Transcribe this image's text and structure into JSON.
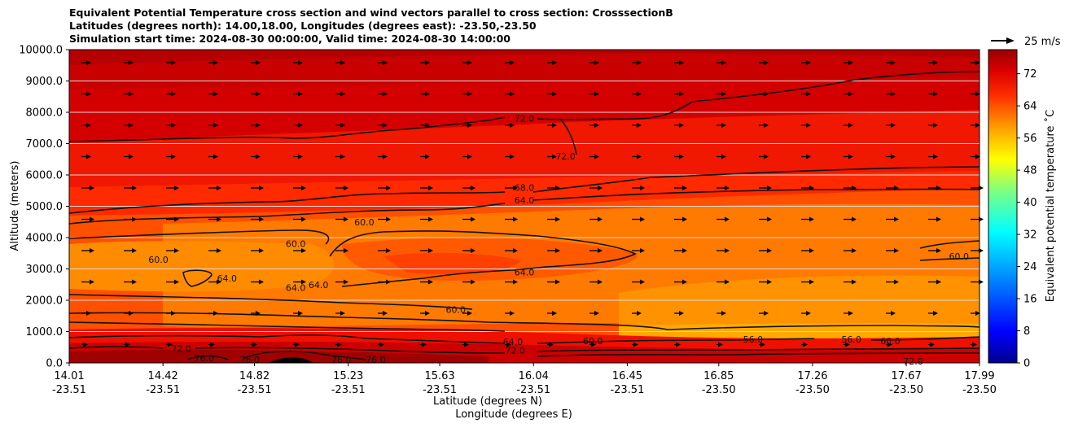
{
  "title": {
    "line1": "Equivalent Potential Temperature cross section and wind vectors parallel to cross section: CrosssectionB",
    "line2": "Latitudes (degrees north): 14.00,18.00, Longitudes (degrees east): -23.50,-23.50",
    "line3": "Simulation start time: 2024-08-30 00:00:00, Valid time: 2024-08-30 14:00:00"
  },
  "chart_data": {
    "type": "heatmap",
    "title": "Equivalent Potential Temperature cross section and wind vectors parallel to cross section: CrosssectionB",
    "ylabel": "Altitude (meters)",
    "xlabel_lines": [
      "Latitude (degrees N)",
      "Longitude (degrees E)"
    ],
    "ylim": [
      0,
      10000
    ],
    "y_ticks": [
      "0.0",
      "1000.0",
      "2000.0",
      "3000.0",
      "4000.0",
      "5000.0",
      "6000.0",
      "7000.0",
      "8000.0",
      "9000.0",
      "10000.0"
    ],
    "y_tick_values": [
      0,
      1000,
      2000,
      3000,
      4000,
      5000,
      6000,
      7000,
      8000,
      9000,
      10000
    ],
    "x_ticks_lat": [
      "14.01",
      "14.42",
      "14.82",
      "15.23",
      "15.63",
      "16.04",
      "16.45",
      "16.85",
      "17.26",
      "17.67",
      "17.99"
    ],
    "x_ticks_lon": [
      "-23.51",
      "-23.51",
      "-23.51",
      "-23.51",
      "-23.51",
      "-23.51",
      "-23.51",
      "-23.50",
      "-23.50",
      "-23.50",
      "-23.50"
    ],
    "x_tick_values": [
      14.01,
      14.42,
      14.82,
      15.23,
      15.63,
      16.04,
      16.45,
      16.85,
      17.26,
      17.67,
      17.99
    ],
    "xlim": [
      14.01,
      17.99
    ],
    "grid": "horizontal",
    "colorbar": {
      "label": "Equivalent potential temperature ˚C",
      "ticks": [
        "0",
        "8",
        "16",
        "24",
        "32",
        "40",
        "48",
        "56",
        "64",
        "72"
      ],
      "tick_values": [
        0,
        8,
        16,
        24,
        32,
        40,
        48,
        56,
        64,
        72
      ],
      "range": [
        0,
        78
      ],
      "colormap": "jet-to-darkred"
    },
    "wind_key": {
      "label": "25 m/s"
    },
    "contour_labels": [
      {
        "text": "72.0",
        "x": 16.0,
        "y": 7800
      },
      {
        "text": "72.0",
        "x": 16.18,
        "y": 6600
      },
      {
        "text": "68.0",
        "x": 16.0,
        "y": 5600
      },
      {
        "text": "64.0",
        "x": 16.0,
        "y": 5200
      },
      {
        "text": "60.0",
        "x": 15.3,
        "y": 4500
      },
      {
        "text": "60.0",
        "x": 14.4,
        "y": 3300
      },
      {
        "text": "60.0",
        "x": 15.0,
        "y": 3800
      },
      {
        "text": "64.0",
        "x": 14.7,
        "y": 2700
      },
      {
        "text": "64.0",
        "x": 15.0,
        "y": 2400
      },
      {
        "text": "64.0",
        "x": 15.1,
        "y": 2500
      },
      {
        "text": "64.0",
        "x": 16.0,
        "y": 2900
      },
      {
        "text": "60.0",
        "x": 15.7,
        "y": 1700
      },
      {
        "text": "60.0",
        "x": 17.9,
        "y": 3400
      },
      {
        "text": "56.0",
        "x": 17.0,
        "y": 750
      },
      {
        "text": "56.0",
        "x": 17.43,
        "y": 750
      },
      {
        "text": "60.0",
        "x": 16.3,
        "y": 700
      },
      {
        "text": "60.0",
        "x": 17.6,
        "y": 700
      },
      {
        "text": "64.0",
        "x": 15.95,
        "y": 680
      },
      {
        "text": "72.0",
        "x": 14.5,
        "y": 450
      },
      {
        "text": "72.0",
        "x": 15.96,
        "y": 400
      },
      {
        "text": "76.0",
        "x": 14.6,
        "y": 150
      },
      {
        "text": "76.0",
        "x": 14.8,
        "y": 100
      },
      {
        "text": "76.0",
        "x": 15.2,
        "y": 100
      },
      {
        "text": "76.0",
        "x": 15.35,
        "y": 100
      },
      {
        "text": "72.0",
        "x": 17.7,
        "y": 50
      }
    ]
  }
}
